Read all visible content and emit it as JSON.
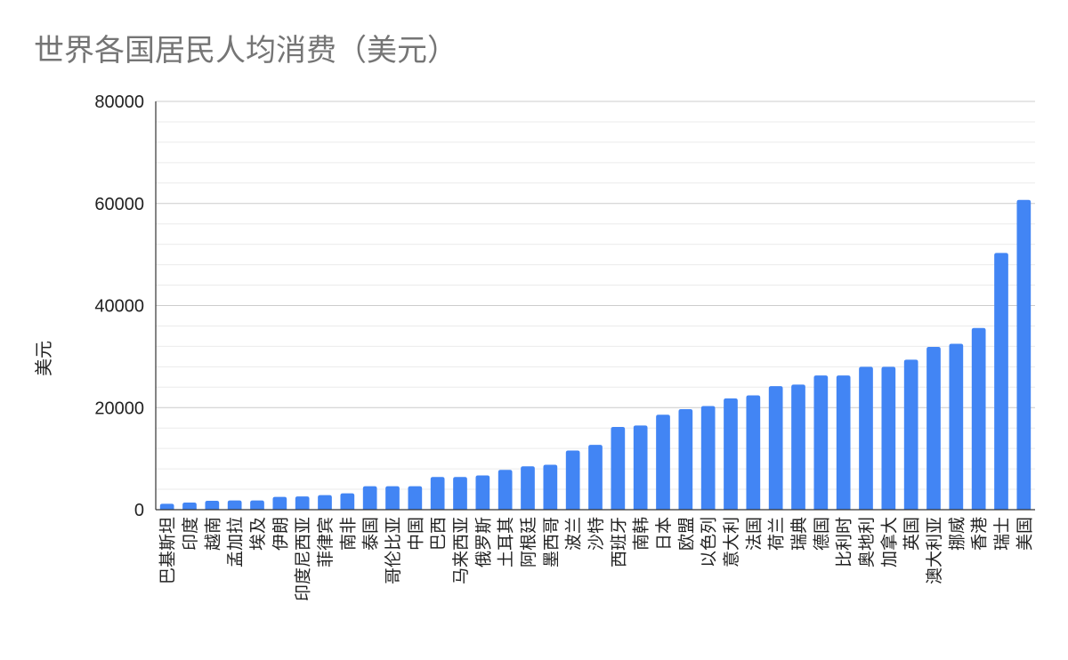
{
  "chart_data": {
    "type": "bar",
    "title": "世界各国居民人均消费（美元）",
    "xlabel": "",
    "ylabel": "美元",
    "ylim": [
      0,
      80000
    ],
    "yticks": [
      0,
      20000,
      40000,
      60000,
      80000
    ],
    "grid": true,
    "legend": "none",
    "bar_color": "#4285f4",
    "categories": [
      "巴基斯坦",
      "印度",
      "越南",
      "孟加拉",
      "埃及",
      "伊朗",
      "印度尼西亚",
      "菲律宾",
      "南非",
      "泰国",
      "哥伦比亚",
      "中国",
      "巴西",
      "马来西亚",
      "俄罗斯",
      "土耳其",
      "阿根廷",
      "墨西哥",
      "波兰",
      "沙特",
      "西班牙",
      "南韩",
      "日本",
      "欧盟",
      "以色列",
      "意大利",
      "法国",
      "荷兰",
      "瑞典",
      "德国",
      "比利时",
      "奥地利",
      "加拿大",
      "英国",
      "澳大利亚",
      "挪威",
      "香港",
      "瑞士",
      "美国"
    ],
    "values": [
      1150,
      1400,
      1750,
      1800,
      1800,
      2500,
      2600,
      2850,
      3200,
      4600,
      4600,
      4600,
      6400,
      6400,
      6700,
      7800,
      8500,
      8800,
      11600,
      12700,
      16200,
      16500,
      18600,
      19700,
      20300,
      21800,
      22400,
      24200,
      24500,
      26300,
      26300,
      28000,
      28000,
      29400,
      31900,
      32500,
      35600,
      50300,
      60700
    ]
  }
}
